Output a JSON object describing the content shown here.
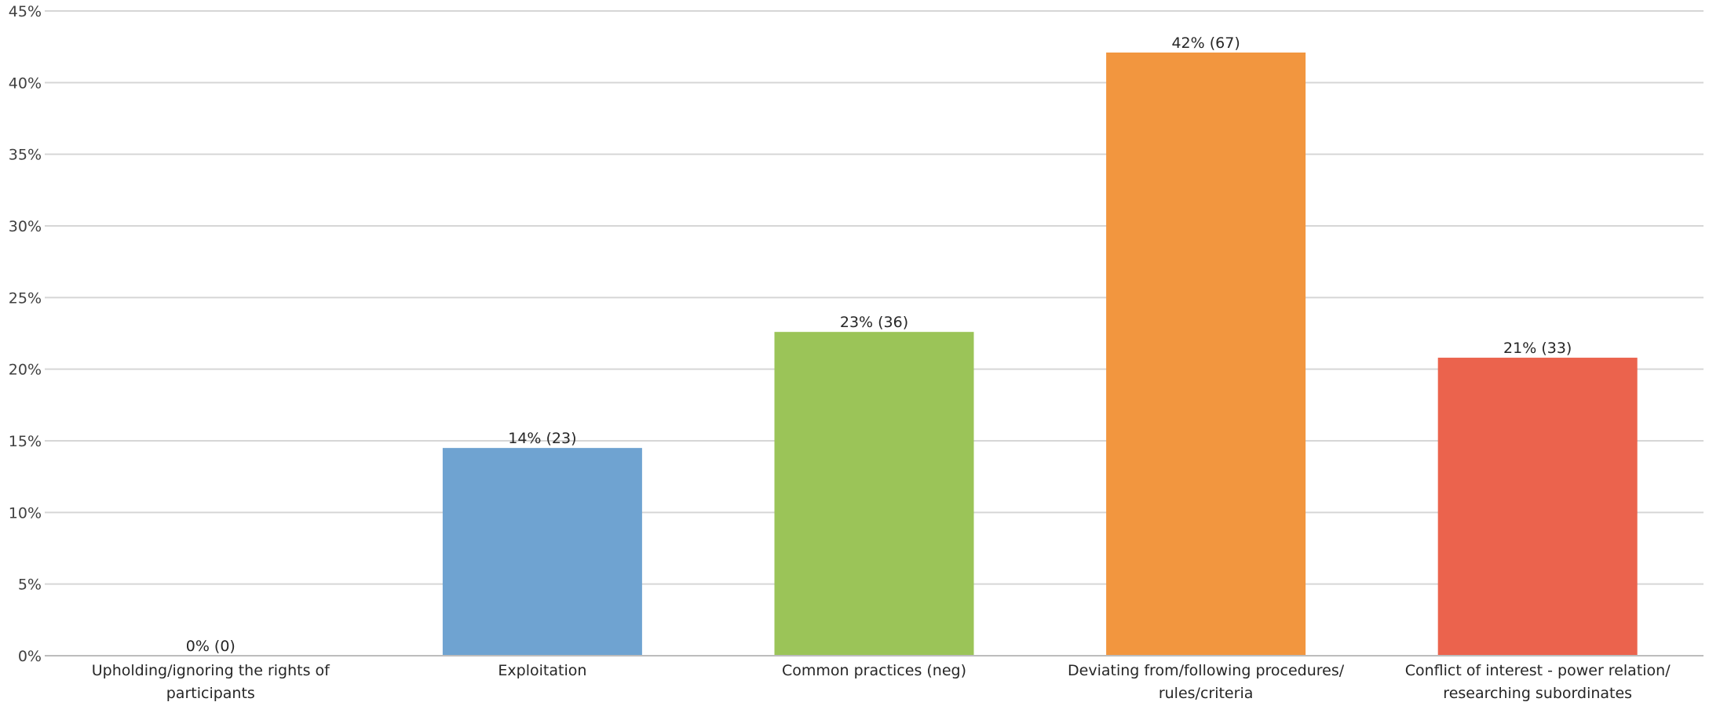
{
  "chart_data": {
    "type": "bar",
    "title": "",
    "xlabel": "",
    "ylabel": "",
    "ylim": [
      0,
      45
    ],
    "yticks": [
      0,
      5,
      10,
      15,
      20,
      25,
      30,
      35,
      40,
      45
    ],
    "ytick_labels": [
      "0%",
      "5%",
      "10%",
      "15%",
      "20%",
      "25%",
      "30%",
      "35%",
      "40%",
      "45%"
    ],
    "grid": true,
    "categories": [
      [
        "Upholding/ignoring the rights of",
        "participants"
      ],
      [
        "Exploitation"
      ],
      [
        "Common practices (neg)"
      ],
      [
        "Deviating from/following procedures/",
        "rules/criteria"
      ],
      [
        "Conflict of interest - power relation/",
        "researching subordinates"
      ]
    ],
    "values": [
      0,
      14.5,
      22.6,
      42.1,
      20.8
    ],
    "data_labels": [
      "0% (0)",
      "14% (23)",
      "23% (36)",
      "42% (67)",
      "21% (33)"
    ],
    "colors": [
      "#6fa3d1",
      "#6fa3d1",
      "#9bc458",
      "#f2963f",
      "#eb634d"
    ]
  }
}
